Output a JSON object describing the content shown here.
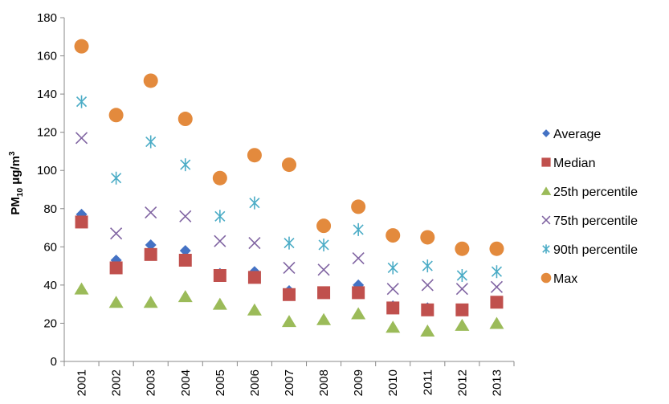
{
  "chart_data": {
    "type": "scatter",
    "title": "",
    "ylabel": {
      "main": "PM",
      "sub": "10",
      "unit": " μg/m",
      "sup": "3"
    },
    "xlabel": "",
    "ylim": [
      0,
      180
    ],
    "yticks": [
      0,
      20,
      40,
      60,
      80,
      100,
      120,
      140,
      160,
      180
    ],
    "categories": [
      "2001",
      "2002",
      "2003",
      "2004",
      "2005",
      "2006",
      "2007",
      "2008",
      "2009",
      "2010",
      "2011",
      "2012",
      "2013"
    ],
    "legend_position": "right",
    "grid": false,
    "series": [
      {
        "name": "Average",
        "marker": "diamond",
        "color": "#4472C4",
        "values": [
          77,
          53,
          61,
          58,
          46,
          47,
          37,
          36,
          40,
          29,
          28,
          27,
          31
        ]
      },
      {
        "name": "Median",
        "marker": "square",
        "color": "#C0504D",
        "values": [
          73,
          49,
          56,
          53,
          45,
          44,
          35,
          36,
          36,
          28,
          27,
          27,
          31
        ]
      },
      {
        "name": "25th percentile",
        "marker": "triangle",
        "color": "#9BBB59",
        "values": [
          38,
          31,
          31,
          34,
          30,
          27,
          21,
          22,
          25,
          18,
          16,
          19,
          20
        ]
      },
      {
        "name": "75th percentile",
        "marker": "x",
        "color": "#8064A2",
        "values": [
          117,
          67,
          78,
          76,
          63,
          62,
          49,
          48,
          54,
          38,
          40,
          38,
          39
        ]
      },
      {
        "name": "90th percentile",
        "marker": "star",
        "color": "#4BACC6",
        "values": [
          136,
          96,
          115,
          103,
          76,
          83,
          62,
          61,
          69,
          49,
          50,
          45,
          47
        ]
      },
      {
        "name": "Max",
        "marker": "circle",
        "color": "#E38A3D",
        "values": [
          165,
          129,
          147,
          127,
          96,
          108,
          103,
          71,
          81,
          66,
          65,
          59,
          59
        ]
      }
    ]
  }
}
